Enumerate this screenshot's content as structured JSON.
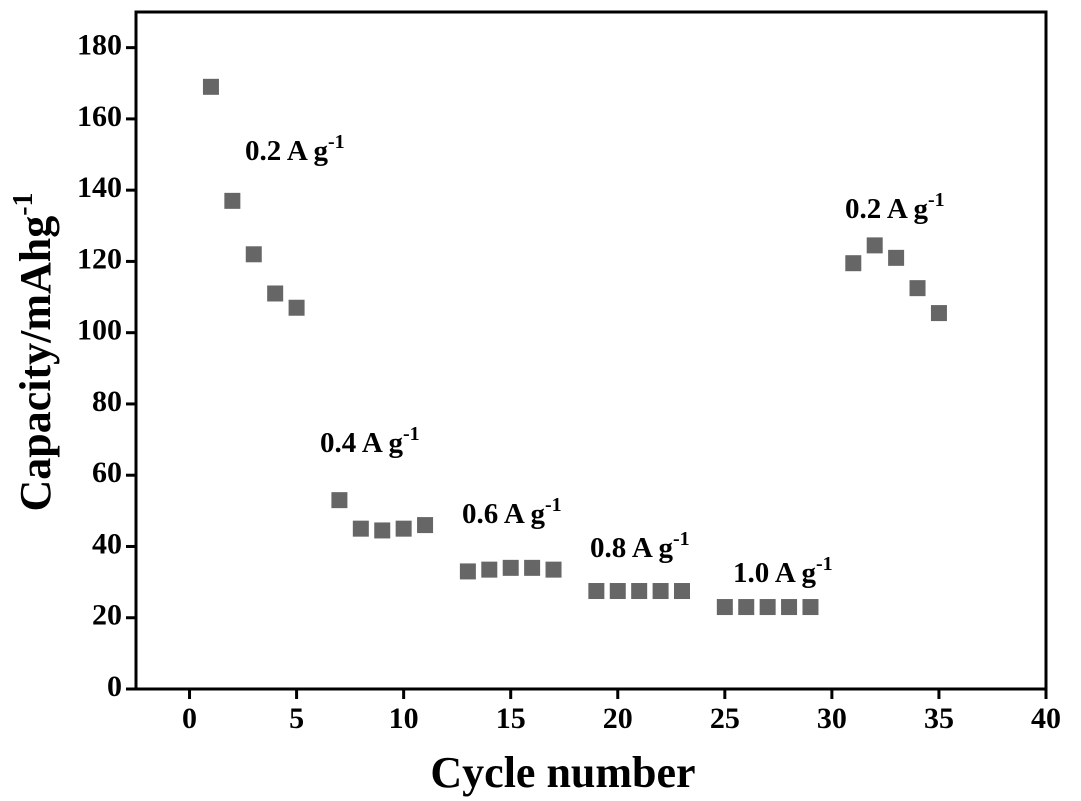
{
  "chart_data": {
    "type": "scatter",
    "xlabel": "Cycle number",
    "ylabel": {
      "text": "Capacity/mAhg",
      "sup": "-1"
    },
    "x": [
      1,
      2,
      3,
      4,
      5,
      7,
      8,
      9,
      10,
      11,
      13,
      14,
      15,
      16,
      17,
      19,
      20,
      21,
      22,
      23,
      25,
      26,
      27,
      28,
      29,
      31,
      32,
      33,
      34,
      35
    ],
    "values": [
      169,
      137,
      122,
      111,
      107,
      53,
      45,
      44.5,
      45,
      46,
      33,
      33.5,
      34,
      34,
      33.5,
      27.5,
      27.5,
      27.5,
      27.5,
      27.5,
      23,
      23,
      23,
      23,
      23,
      119.5,
      124.5,
      121,
      112.5,
      105.5
    ],
    "color": "#666666",
    "xlim": [
      -2.5,
      40
    ],
    "xticks": [
      0,
      5,
      10,
      15,
      20,
      25,
      30,
      35,
      40
    ],
    "ylim": [
      0,
      190
    ],
    "yticks": [
      0,
      20,
      40,
      60,
      80,
      100,
      120,
      140,
      160,
      180
    ],
    "annotations": [
      {
        "text": "0.2 A g",
        "sup": "-1"
      },
      {
        "text": "0.4 A g",
        "sup": "-1"
      },
      {
        "text": "0.6 A g",
        "sup": "-1"
      },
      {
        "text": "0.8 A g",
        "sup": "-1"
      },
      {
        "text": "1.0 A g",
        "sup": "-1"
      },
      {
        "text": "0.2 A g",
        "sup": "-1"
      }
    ]
  }
}
